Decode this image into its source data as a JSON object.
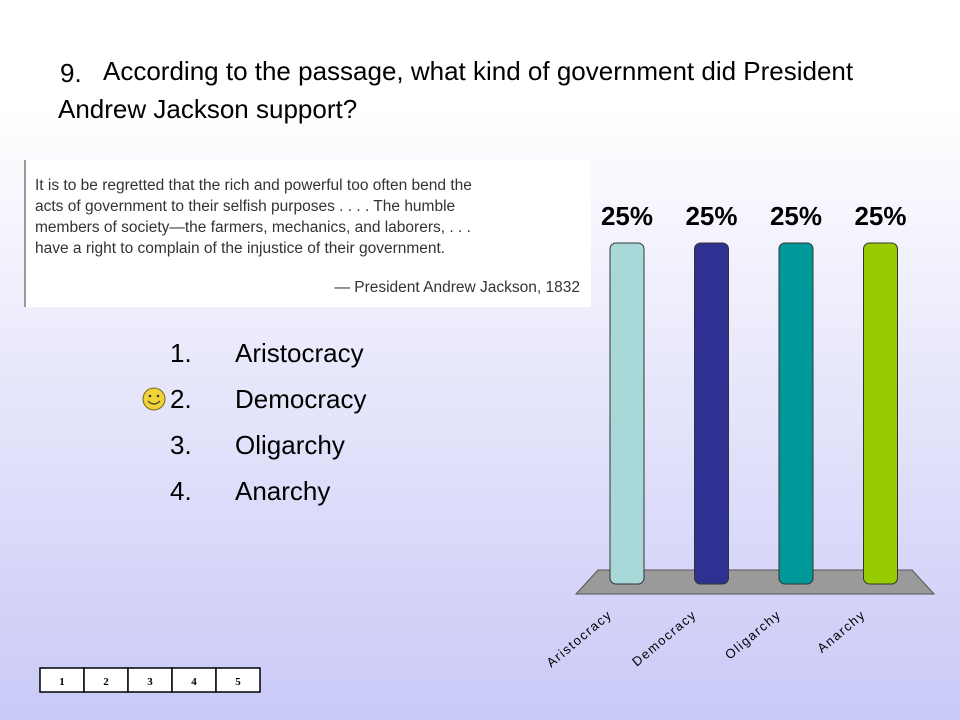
{
  "question": {
    "number": "9.",
    "text": "According to the passage, what kind of government did President Andrew Jackson support?"
  },
  "quote": {
    "lines": [
      "It is to be regretted that the rich and powerful too often bend the",
      "acts of government to their selfish purposes . . . . The humble",
      "members of society—the farmers, mechanics, and laborers, . . .",
      "have a right to complain of the injustice of their government."
    ],
    "attribution": "— President Andrew Jackson, 1832"
  },
  "options": [
    {
      "number": "1.",
      "text": "Aristocracy"
    },
    {
      "number": "2.",
      "text": "Democracy"
    },
    {
      "number": "3.",
      "text": "Oligarchy"
    },
    {
      "number": "4.",
      "text": "Anarchy"
    }
  ],
  "counter": [
    "1",
    "2",
    "3",
    "4",
    "5"
  ],
  "chart_data": {
    "type": "bar",
    "categories": [
      "Aristocracy",
      "Democracy",
      "Oligarchy",
      "Anarchy"
    ],
    "values": [
      25,
      25,
      25,
      25
    ],
    "value_labels": [
      "25%",
      "25%",
      "25%",
      "25%"
    ],
    "colors": [
      "#a8d8d8",
      "#2e3192",
      "#009999",
      "#99cc00"
    ]
  }
}
